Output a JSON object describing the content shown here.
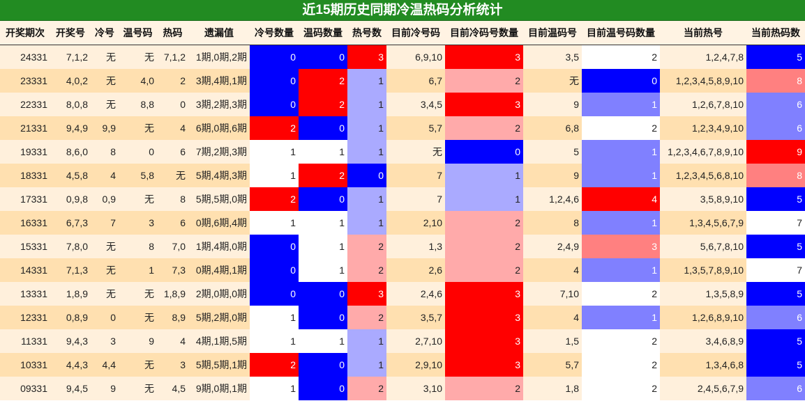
{
  "title": "近15期历史同期冷温热码分析统计",
  "heatmap": {
    "low": "#0000ff",
    "mid": "#ffffff",
    "high": "#ff0000"
  },
  "table": {
    "columns": [
      "开奖期次",
      "开奖号",
      "冷号",
      "温号码",
      "热码",
      "遗漏值",
      "冷号数量",
      "温码数量",
      "热号数",
      "目前冷号码",
      "目前冷码号数量",
      "目前温码号",
      "目前温号码数量",
      "当前热号",
      "当前热码数"
    ],
    "rows": [
      [
        "24331",
        "7,1,2",
        "无",
        "无",
        "7,1,2",
        "1期,0期,2期",
        0,
        0,
        3,
        "6,9,10",
        3,
        "3,5",
        2,
        "1,2,4,7,8",
        5
      ],
      [
        "23331",
        "4,0,2",
        "无",
        "4,0",
        "2",
        "3期,4期,1期",
        0,
        2,
        1,
        "6,7",
        2,
        "无",
        0,
        "1,2,3,4,5,8,9,10",
        8
      ],
      [
        "22331",
        "8,0,8",
        "无",
        "8,8",
        "0",
        "3期,2期,3期",
        0,
        2,
        1,
        "3,4,5",
        3,
        "9",
        1,
        "1,2,6,7,8,10",
        6
      ],
      [
        "21331",
        "9,4,9",
        "9,9",
        "无",
        "4",
        "6期,0期,6期",
        2,
        0,
        1,
        "5,7",
        2,
        "6,8",
        2,
        "1,2,3,4,9,10",
        6
      ],
      [
        "19331",
        "8,6,0",
        "8",
        "0",
        "6",
        "7期,2期,3期",
        1,
        1,
        1,
        "无",
        0,
        "5",
        1,
        "1,2,3,4,6,7,8,9,10",
        9
      ],
      [
        "18331",
        "4,5,8",
        "4",
        "5,8",
        "无",
        "5期,4期,3期",
        1,
        2,
        0,
        "7",
        1,
        "9",
        1,
        "1,2,3,4,5,6,8,10",
        8
      ],
      [
        "17331",
        "0,9,8",
        "0,9",
        "无",
        "8",
        "5期,5期,0期",
        2,
        0,
        1,
        "7",
        1,
        "1,2,4,6",
        4,
        "3,5,8,9,10",
        5
      ],
      [
        "16331",
        "6,7,3",
        "7",
        "3",
        "6",
        "0期,6期,4期",
        1,
        1,
        1,
        "2,10",
        2,
        "8",
        1,
        "1,3,4,5,6,7,9",
        7
      ],
      [
        "15331",
        "7,8,0",
        "无",
        "8",
        "7,0",
        "1期,4期,0期",
        0,
        1,
        2,
        "1,3",
        2,
        "2,4,9",
        3,
        "5,6,7,8,10",
        5
      ],
      [
        "14331",
        "7,1,3",
        "无",
        "1",
        "7,3",
        "0期,4期,1期",
        0,
        1,
        2,
        "2,6",
        2,
        "4",
        1,
        "1,3,5,7,8,9,10",
        7
      ],
      [
        "13331",
        "1,8,9",
        "无",
        "无",
        "1,8,9",
        "2期,0期,0期",
        0,
        0,
        3,
        "2,4,6",
        3,
        "7,10",
        2,
        "1,3,5,8,9",
        5
      ],
      [
        "12331",
        "0,8,9",
        "0",
        "无",
        "8,9",
        "5期,2期,0期",
        1,
        0,
        2,
        "3,5,7",
        3,
        "4",
        1,
        "1,2,6,8,9,10",
        6
      ],
      [
        "11331",
        "9,4,3",
        "3",
        "9",
        "4",
        "4期,1期,5期",
        1,
        1,
        1,
        "2,7,10",
        3,
        "1,5",
        2,
        "3,4,6,8,9",
        5
      ],
      [
        "10331",
        "4,4,3",
        "4,4",
        "无",
        "3",
        "5期,5期,1期",
        2,
        0,
        1,
        "2,9,10",
        3,
        "5,7",
        2,
        "1,3,4,6,8",
        5
      ],
      [
        "09331",
        "9,4,5",
        "9",
        "无",
        "4,5",
        "9期,0期,1期",
        1,
        0,
        2,
        "3,10",
        2,
        "1,8",
        2,
        "2,4,5,6,7,9",
        6
      ]
    ]
  }
}
